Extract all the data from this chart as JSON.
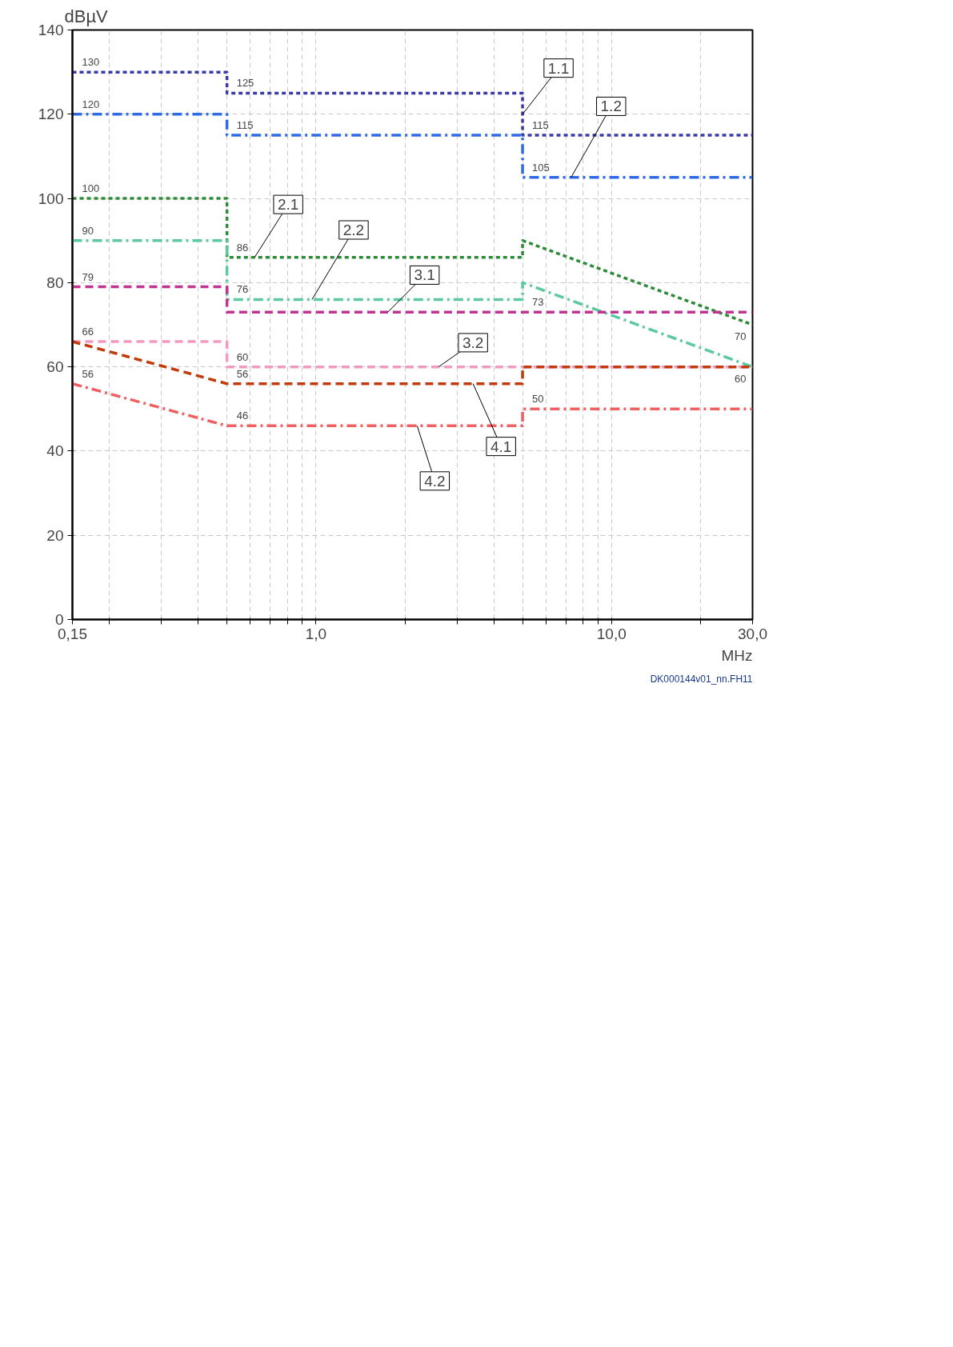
{
  "chart_data": {
    "type": "line",
    "xlabel": "MHz",
    "ylabel": "dBµV",
    "log": "x",
    "grid": true,
    "marker": "none",
    "xlim": [
      0.15,
      30
    ],
    "ylim": [
      0,
      140
    ],
    "xticks": [
      {
        "value": 0.15,
        "label": "0,15"
      },
      {
        "value": 0.2,
        "label": null
      },
      {
        "value": 0.3,
        "label": null
      },
      {
        "value": 0.4,
        "label": null
      },
      {
        "value": 0.5,
        "label": null
      },
      {
        "value": 0.6,
        "label": null
      },
      {
        "value": 0.7,
        "label": null
      },
      {
        "value": 0.8,
        "label": null
      },
      {
        "value": 0.9,
        "label": null
      },
      {
        "value": 1,
        "label": "1,0"
      },
      {
        "value": 2,
        "label": null
      },
      {
        "value": 3,
        "label": null
      },
      {
        "value": 4,
        "label": null
      },
      {
        "value": 5,
        "label": null
      },
      {
        "value": 6,
        "label": null
      },
      {
        "value": 7,
        "label": null
      },
      {
        "value": 8,
        "label": null
      },
      {
        "value": 9,
        "label": null
      },
      {
        "value": 10,
        "label": "10,0"
      },
      {
        "value": 20,
        "label": null
      },
      {
        "value": 30,
        "label": "30,0"
      }
    ],
    "yticks": [
      0,
      20,
      40,
      60,
      80,
      100,
      120,
      140
    ],
    "x": [
      0.15,
      0.5,
      0.5,
      5,
      5,
      30
    ],
    "series": [
      {
        "color": "#3a3aa8",
        "line_style": "dotted",
        "values": [
          130,
          130,
          125,
          125,
          115,
          115
        ],
        "value_labels": [
          "130",
          null,
          "125",
          null,
          "115",
          null
        ]
      },
      {
        "color": "#2f6be8",
        "line_style": "dashdot",
        "values": [
          120,
          120,
          115,
          115,
          105,
          105
        ],
        "value_labels": [
          "120",
          null,
          "115",
          null,
          "105",
          null
        ]
      },
      {
        "color": "#2e8b3a",
        "line_style": "dotted",
        "values": [
          100,
          100,
          86,
          86,
          90,
          70
        ],
        "value_labels": [
          "100",
          null,
          "86",
          null,
          null,
          "70"
        ]
      },
      {
        "color": "#5cc9a0",
        "line_style": "dashdot",
        "values": [
          90,
          90,
          76,
          76,
          80,
          60
        ],
        "value_labels": [
          "90",
          null,
          "76",
          null,
          null,
          "60"
        ]
      },
      {
        "color": "#c0338f",
        "line_style": "dashed",
        "values": [
          79,
          79,
          73,
          73,
          73,
          73
        ],
        "value_labels": [
          "79",
          null,
          null,
          null,
          "73",
          null
        ]
      },
      {
        "color": "#f29ac2",
        "line_style": "dashed",
        "values": [
          66,
          66,
          60,
          60,
          60,
          60
        ],
        "value_labels": [
          "66",
          null,
          "60",
          null,
          null,
          null
        ]
      },
      {
        "color": "#c23b0a",
        "line_style": "dashed",
        "values": [
          66,
          56,
          56,
          56,
          60,
          60
        ],
        "value_labels": [
          null,
          null,
          "56",
          null,
          null,
          null
        ]
      },
      {
        "color": "#f06060",
        "line_style": "dashdot",
        "values": [
          56,
          46,
          46,
          46,
          50,
          50
        ],
        "value_labels": [
          "56",
          null,
          "46",
          null,
          "50",
          null
        ]
      }
    ],
    "annotations": [
      {
        "text": "1.1",
        "x": 5,
        "y": 120
      },
      {
        "text": "1.2",
        "x": 7.3,
        "y": 105
      },
      {
        "text": "2.1",
        "x": 0.62,
        "y": 86
      },
      {
        "text": "2.2",
        "x": 0.97,
        "y": 76
      },
      {
        "text": "3.1",
        "x": 1.75,
        "y": 73
      },
      {
        "text": "3.2",
        "x": 2.6,
        "y": 60
      },
      {
        "text": "4.1",
        "x": 3.4,
        "y": 56
      },
      {
        "text": "4.2",
        "x": 2.2,
        "y": 46
      },
      "DK000144v01_nn.FH11"
    ]
  }
}
